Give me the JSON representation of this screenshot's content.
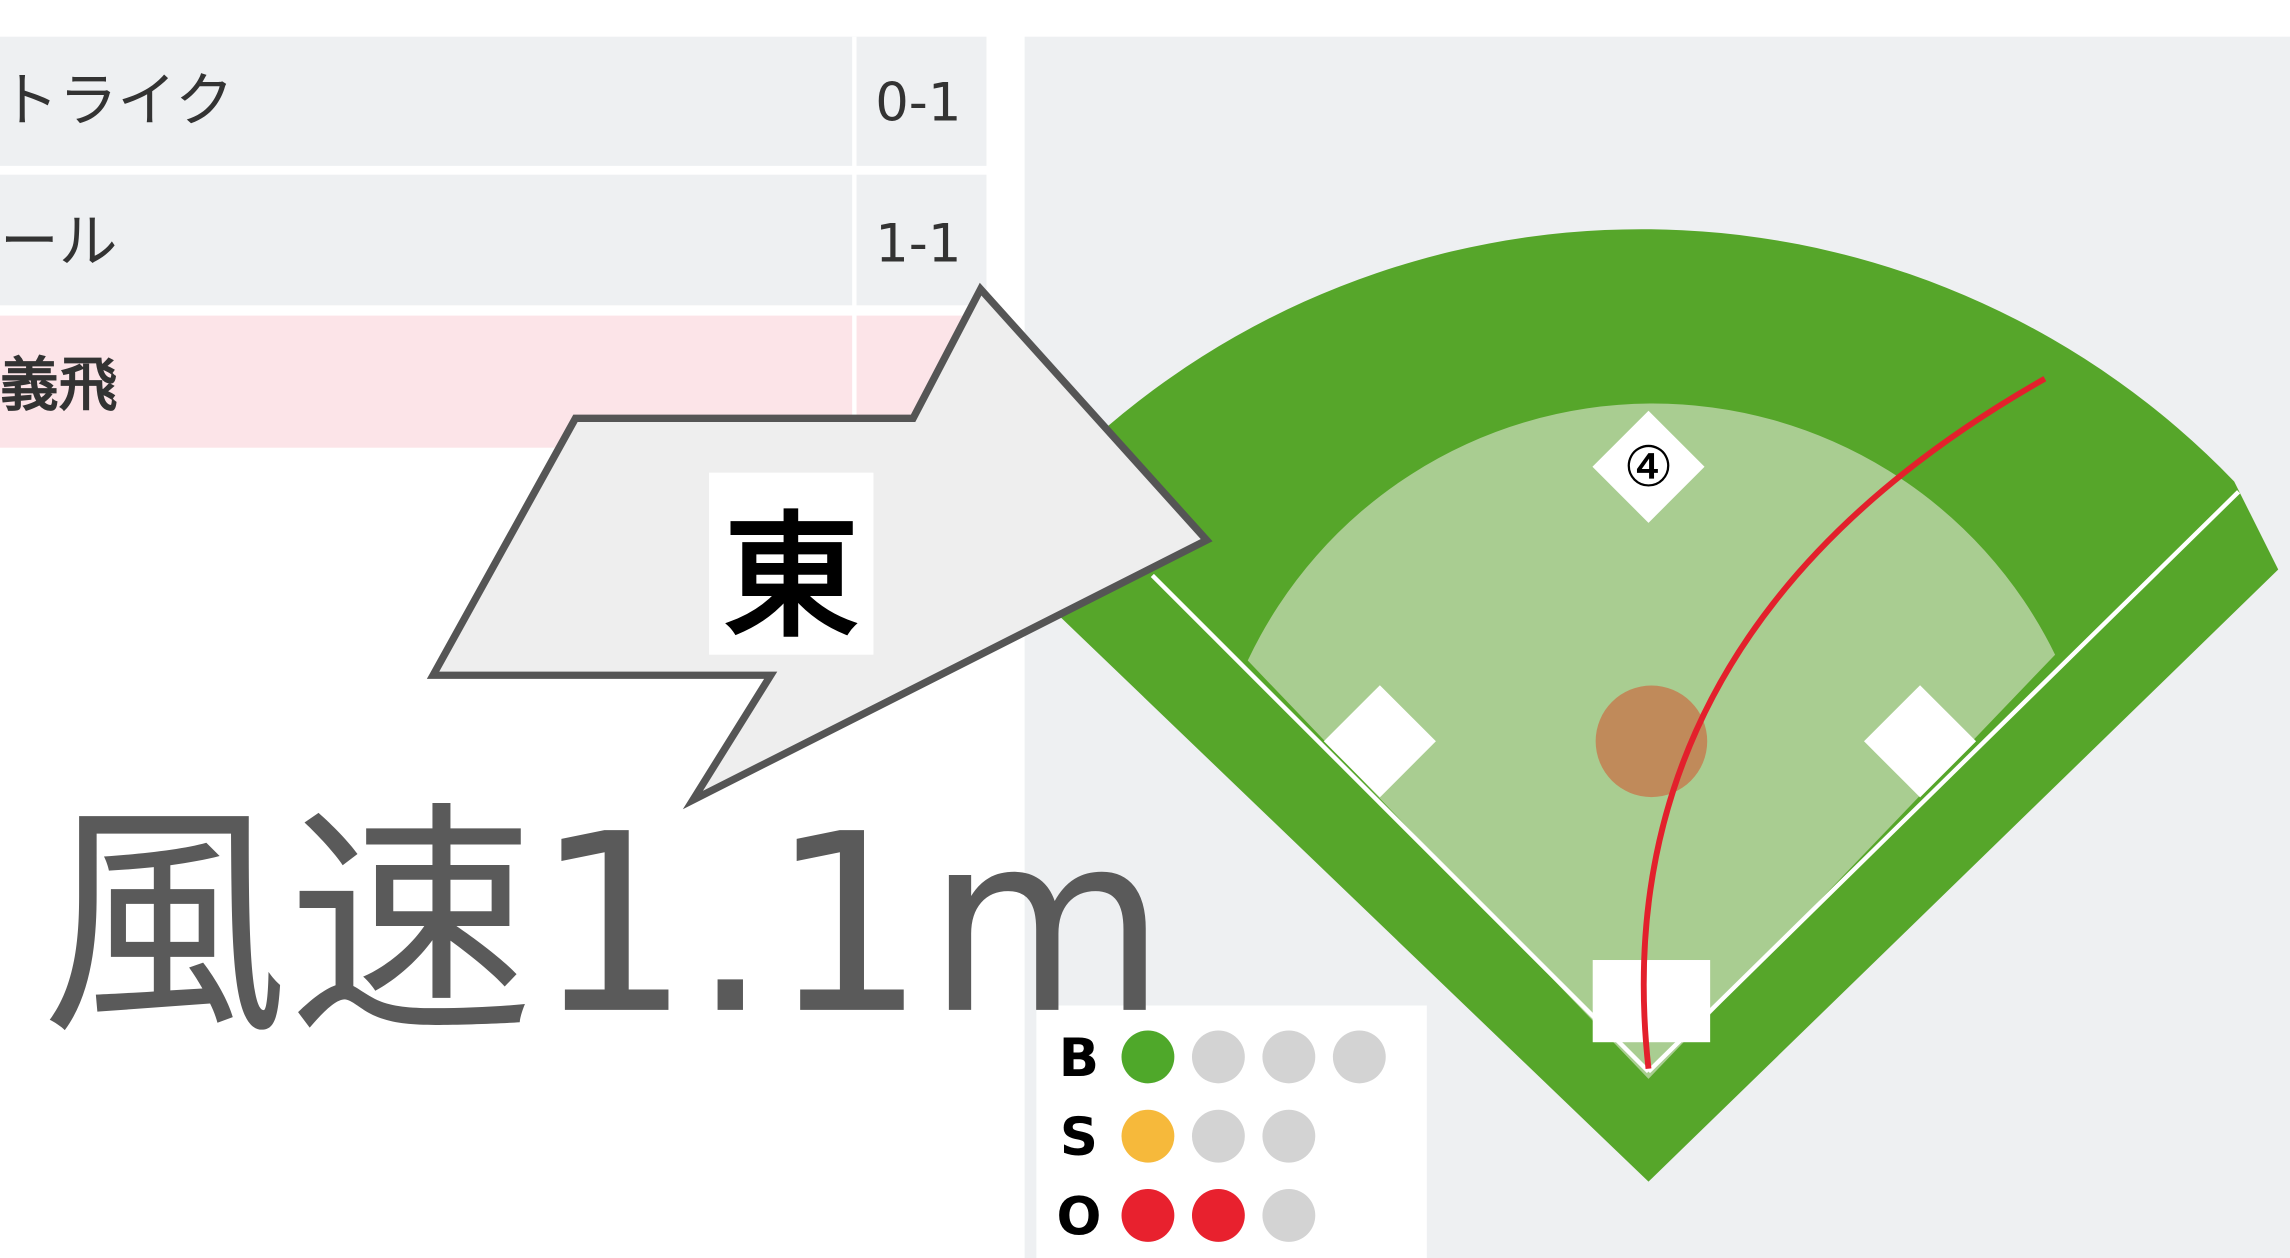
{
  "play_log": {
    "rows": [
      {
        "event": "トライク",
        "count": "0-1"
      },
      {
        "event": "ール",
        "count": "1-1"
      },
      {
        "event": "義飛"
      }
    ]
  },
  "wind": {
    "direction": "東",
    "speed": "風速1.1m"
  },
  "field": {
    "fielder": "④"
  },
  "count": [
    {
      "label": "B",
      "value": 1,
      "max": 4,
      "color": "#4fa82a"
    },
    {
      "label": "S",
      "value": 1,
      "max": 3,
      "color": "#f6b93b"
    },
    {
      "label": "O",
      "value": 2,
      "max": 3,
      "color": "#e8212e"
    }
  ]
}
